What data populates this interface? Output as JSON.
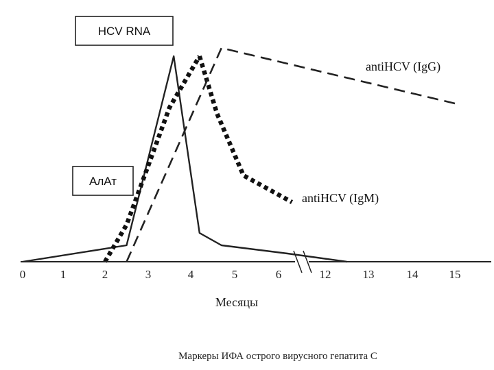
{
  "chart_data": {
    "type": "line",
    "title": "",
    "caption": "Маркеры ИФА острого вирусного гепатита С",
    "xlabel": "Месяцы",
    "ylabel": "",
    "x_ticks": [
      "0",
      "1",
      "2",
      "3",
      "4",
      "5",
      "6",
      "12",
      "13",
      "14",
      "15"
    ],
    "x_axis_break": "between 6 and 12",
    "y_values_unit": "relative level (no y-axis printed)",
    "ylim": [
      0,
      100
    ],
    "grid": false,
    "legend": "none (series labelled directly on chart)",
    "series": [
      {
        "name": "HCV RNA",
        "labelled_by": "box",
        "style": "solid",
        "x": [
          0,
          2.5,
          3.6,
          4.2,
          4.7,
          6.2,
          12.5
        ],
        "y": [
          0,
          8,
          100,
          14,
          8,
          4,
          0
        ]
      },
      {
        "name": "АлАт",
        "labelled_by": "box",
        "style": "dotted-heavy",
        "x": [
          2,
          2.5,
          3.5,
          4.2
        ],
        "y": [
          0,
          18,
          75,
          100
        ]
      },
      {
        "name": "antiHCV (IgM)",
        "labelled_by": "text",
        "style": "dotted-heavy",
        "x": [
          4.2,
          4.6,
          5.2,
          6.3
        ],
        "y": [
          100,
          72,
          42,
          29
        ]
      },
      {
        "name": "antiHCV (IgG)",
        "labelled_by": "text",
        "style": "dashed",
        "x": [
          2.5,
          4.7,
          15
        ],
        "y": [
          0,
          104,
          77
        ]
      }
    ]
  }
}
